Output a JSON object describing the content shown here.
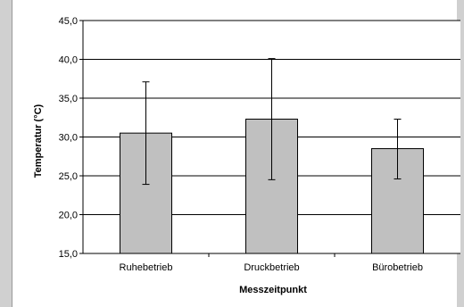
{
  "chart_data": {
    "type": "bar",
    "title": "",
    "xlabel": "Messzeitpunkt",
    "ylabel": "Temperatur (°C)",
    "ylim": [
      15.0,
      45.0
    ],
    "yticks": [
      "15,0",
      "20,0",
      "25,0",
      "30,0",
      "35,0",
      "40,0",
      "45,0"
    ],
    "ytick_values": [
      15,
      20,
      25,
      30,
      35,
      40,
      45
    ],
    "grid": true,
    "categories": [
      "Ruhebetrieb",
      "Druckbetrieb",
      "Bürobetrieb"
    ],
    "values": [
      30.5,
      32.3,
      28.5
    ],
    "error_low": [
      23.9,
      24.5,
      24.6
    ],
    "error_high": [
      37.1,
      40.1,
      32.3
    ],
    "colors": {
      "bar_fill": "#c0c0c0",
      "bar_stroke": "#000000",
      "plot_background": "#ffffff",
      "frame_background": "#d0d0d0"
    }
  }
}
